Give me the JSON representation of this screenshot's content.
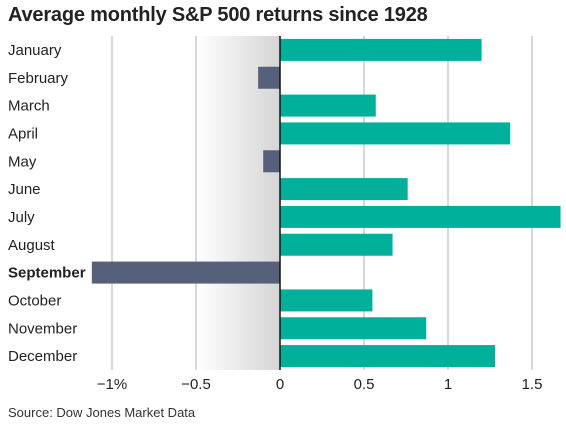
{
  "chart_data": {
    "type": "bar",
    "orientation": "horizontal",
    "title": "Average monthly S&P 500 returns since 1928",
    "categories": [
      "January",
      "February",
      "March",
      "April",
      "May",
      "June",
      "July",
      "August",
      "September",
      "October",
      "November",
      "December"
    ],
    "values": [
      1.2,
      -0.13,
      0.57,
      1.37,
      -0.1,
      0.76,
      1.67,
      0.67,
      -1.12,
      0.55,
      0.87,
      1.28
    ],
    "highlight": "September",
    "xlim": [
      -1.25,
      1.67
    ],
    "xticks": [
      -1,
      -0.5,
      0,
      0.5,
      1,
      1.5
    ],
    "xtick_labels": [
      "−1%",
      "−0.5",
      "0",
      "0.5",
      "1",
      "1.5"
    ],
    "grid": "vertical",
    "colors": {
      "positive": "#00b09b",
      "negative": "#56607a",
      "grid": "#b0b0b0",
      "shade_from": "#ffffff",
      "shade_to": "#d5d5d5"
    }
  },
  "source": "Source: Dow Jones Market Data"
}
